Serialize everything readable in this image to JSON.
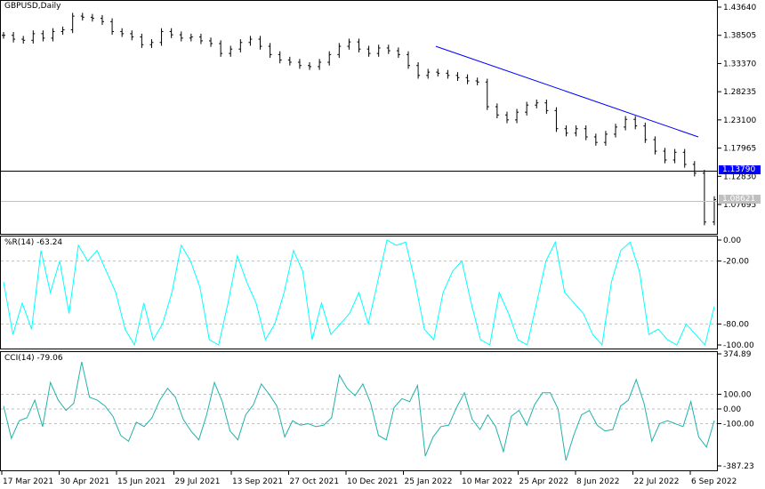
{
  "colors": {
    "price_bars": "#000000",
    "trendline": "#0000ff",
    "wpr": "#00ffff",
    "cci": "#20b2aa",
    "bid_tag": "#0000ff",
    "last_tag": "#c0c0c0",
    "grid_dash": "#c0c0c0"
  },
  "chart_data": [
    {
      "type": "bar",
      "title": "GBPUSD,Daily",
      "y_ticks": [
        "1.43640",
        "1.38505",
        "1.33370",
        "1.28235",
        "1.23100",
        "1.17965",
        "1.12830",
        "1.07695"
      ],
      "ylim": [
        1.03,
        1.4364
      ],
      "price_tags": {
        "bid": "1.13790",
        "last": "1.08621"
      },
      "close": [
        1.385,
        1.378,
        1.376,
        1.388,
        1.38,
        1.392,
        1.395,
        1.42,
        1.418,
        1.416,
        1.41,
        1.392,
        1.388,
        1.382,
        1.368,
        1.372,
        1.392,
        1.386,
        1.38,
        1.382,
        1.375,
        1.37,
        1.352,
        1.36,
        1.372,
        1.378,
        1.365,
        1.35,
        1.34,
        1.336,
        1.33,
        1.328,
        1.336,
        1.35,
        1.365,
        1.373,
        1.36,
        1.352,
        1.362,
        1.357,
        1.35,
        1.33,
        1.312,
        1.318,
        1.316,
        1.312,
        1.308,
        1.302,
        1.3,
        1.255,
        1.24,
        1.231,
        1.245,
        1.258,
        1.262,
        1.248,
        1.215,
        1.207,
        1.215,
        1.2,
        1.19,
        1.205,
        1.218,
        1.232,
        1.22,
        1.195,
        1.174,
        1.158,
        1.172,
        1.15,
        1.134,
        1.045,
        1.086
      ],
      "trendline": {
        "from_price": 1.365,
        "to_price": 1.2
      }
    },
    {
      "type": "line",
      "title": "%R(14) -63.24",
      "y_ticks": [
        "0.00",
        "-20.00",
        "-80.00",
        "-100.00"
      ],
      "ylim": [
        -100,
        0
      ],
      "levels": [
        -20,
        -80
      ],
      "values": [
        -40,
        -90,
        -60,
        -85,
        -10,
        -50,
        -20,
        -70,
        -5,
        -20,
        -10,
        -30,
        -50,
        -85,
        -100,
        -60,
        -95,
        -80,
        -50,
        -5,
        -20,
        -45,
        -95,
        -100,
        -60,
        -15,
        -40,
        -60,
        -95,
        -80,
        -50,
        -10,
        -30,
        -95,
        -60,
        -90,
        -80,
        -70,
        -50,
        -80,
        -40,
        0,
        -5,
        -2,
        -40,
        -85,
        -95,
        -50,
        -30,
        -20,
        -60,
        -95,
        -100,
        -50,
        -70,
        -95,
        -100,
        -60,
        -20,
        -2,
        -50,
        -60,
        -70,
        -90,
        -100,
        -40,
        -10,
        -2,
        -30,
        -90,
        -85,
        -95,
        -100,
        -80,
        -90,
        -100,
        -63.24
      ]
    },
    {
      "type": "line",
      "title": "CCI(14) -79.06",
      "y_ticks": [
        "374.89",
        "100.00",
        "0.00",
        "-100.00",
        "-387.23"
      ],
      "ylim": [
        -387.23,
        374.89
      ],
      "levels": [
        100,
        0,
        -100
      ],
      "values": [
        20,
        -200,
        -80,
        -60,
        60,
        -120,
        180,
        60,
        -10,
        40,
        320,
        80,
        60,
        20,
        -50,
        -180,
        -220,
        -90,
        -120,
        -60,
        60,
        140,
        80,
        -70,
        -150,
        -210,
        -40,
        180,
        50,
        -150,
        -210,
        -40,
        30,
        170,
        100,
        20,
        -190,
        -80,
        -110,
        -100,
        -120,
        -110,
        -60,
        230,
        140,
        90,
        170,
        40,
        -180,
        -210,
        10,
        70,
        50,
        160,
        -320,
        -190,
        -120,
        -110,
        10,
        110,
        -70,
        -140,
        -40,
        -120,
        -290,
        -50,
        -10,
        -110,
        30,
        110,
        110,
        0,
        -350,
        -180,
        -40,
        -10,
        -110,
        -150,
        -140,
        20,
        60,
        200,
        40,
        -220,
        -100,
        -80,
        -100,
        -120,
        50,
        -190,
        -260,
        -79.06
      ]
    }
  ],
  "x_axis": {
    "ticks": [
      "17 Mar 2021",
      "30 Apr 2021",
      "15 Jun 2021",
      "29 Jul 2021",
      "13 Sep 2021",
      "27 Oct 2021",
      "10 Dec 2021",
      "25 Jan 2022",
      "10 Mar 2022",
      "25 Apr 2022",
      "8 Jun 2022",
      "22 Jul 2022",
      "6 Sep 2022"
    ]
  }
}
